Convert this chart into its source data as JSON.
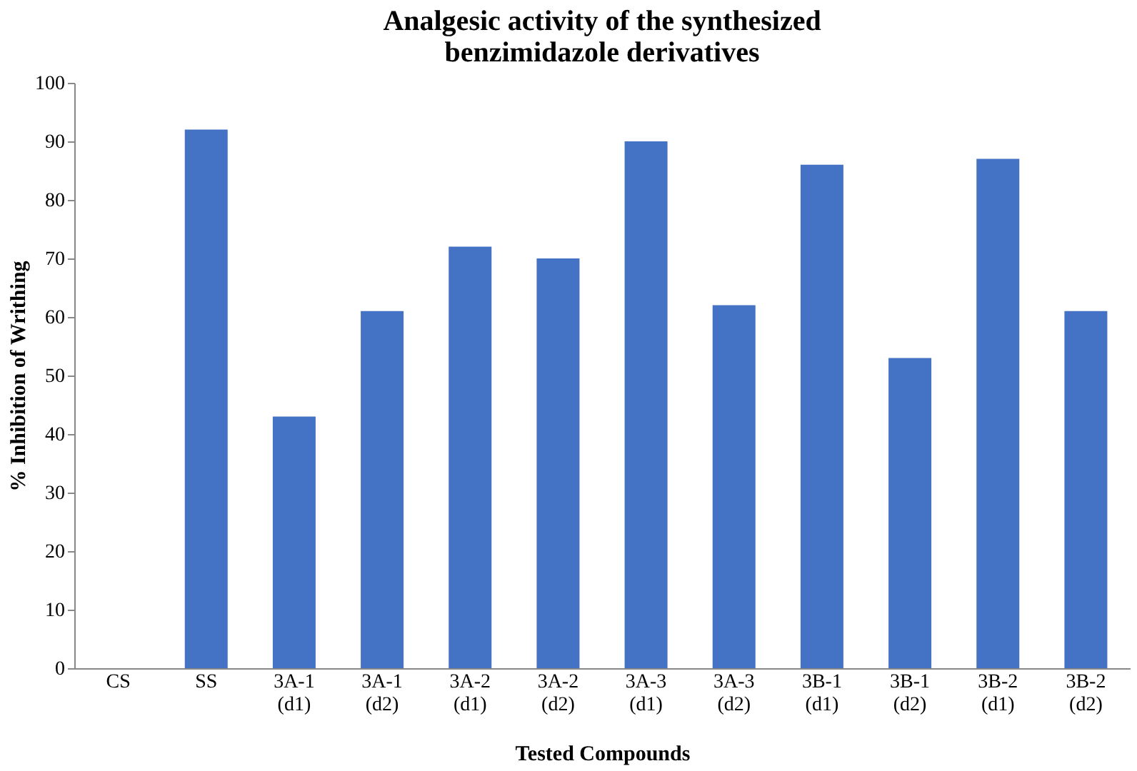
{
  "chart_data": {
    "type": "bar",
    "title": [
      "Analgesic activity of the synthesized",
      "benzimidazole derivatives"
    ],
    "xlabel": "Tested Compounds",
    "ylabel": "% Inhibition of Writhing",
    "categories": [
      "CS",
      "SS",
      "3A-1 (d1)",
      "3A-1 (d2)",
      "3A-2 (d1)",
      "3A-2 (d2)",
      "3A-3 (d1)",
      "3A-3 (d2)",
      "3B-1 (d1)",
      "3B-1 (d2)",
      "3B-2 (d1)",
      "3B-2 (d2)"
    ],
    "values": [
      0,
      92,
      43,
      61,
      72,
      70,
      90,
      62,
      86,
      53,
      87,
      61
    ],
    "color": "#4472c4",
    "ylim": [
      0,
      100
    ],
    "yticks": [
      0,
      10,
      20,
      30,
      40,
      50,
      60,
      70,
      80,
      90,
      100
    ],
    "grid": false
  }
}
